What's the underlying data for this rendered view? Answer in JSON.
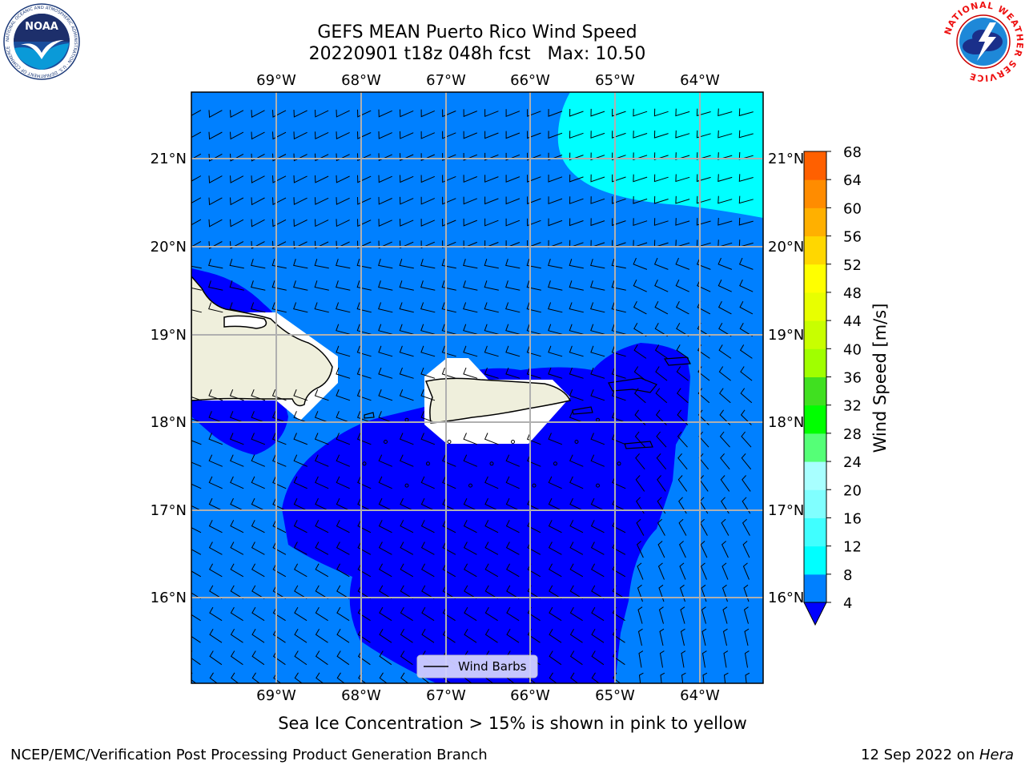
{
  "header": {
    "title_line1": "GEFS MEAN Puerto Rico Wind Speed",
    "title_line2": "20220901 t18z 048h fcst   Max: 10.50"
  },
  "map": {
    "lon_labels": [
      "69°W",
      "68°W",
      "67°W",
      "66°W",
      "65°W",
      "64°W"
    ],
    "lat_labels": [
      "21°N",
      "20°N",
      "19°N",
      "18°N",
      "17°N",
      "16°N"
    ],
    "legend_label": "Wind Barbs",
    "colors": {
      "sea_light": "#0080ff",
      "sea_dark": "#0000ff",
      "cyan": "#00ffff",
      "land": "#efefdc",
      "grid": "#b0b0b0"
    }
  },
  "colorbar": {
    "label": "Wind Speed [m/s]",
    "ticks": [
      "4",
      "8",
      "12",
      "16",
      "20",
      "24",
      "28",
      "32",
      "36",
      "40",
      "44",
      "48",
      "52",
      "56",
      "60",
      "64",
      "68"
    ],
    "colors": [
      "#0080ff",
      "#00ffff",
      "#40ffff",
      "#80ffff",
      "#a8ffff",
      "#55ff77",
      "#00ff00",
      "#40e020",
      "#a0ff00",
      "#c8ff00",
      "#e8ff00",
      "#ffff00",
      "#ffd700",
      "#ffb000",
      "#ff8c00",
      "#ff6000",
      "#ff3000",
      "#ff0000"
    ],
    "under_color": "#0000ff"
  },
  "logos": {
    "noaa_text": "NOAA",
    "noaa_ring": "NATIONAL OCEANIC AND ATMOSPHERIC ADMINISTRATION · U.S. DEPARTMENT OF COMMERCE",
    "nws_ring": "NATIONAL WEATHER SERVICE"
  },
  "note": "Sea Ice Concentration > 15% is shown in pink to yellow",
  "footer": {
    "left": "NCEP/EMC/Verification Post Processing Product Generation Branch",
    "date": "12 Sep 2022 on ",
    "machine": "Hera"
  }
}
